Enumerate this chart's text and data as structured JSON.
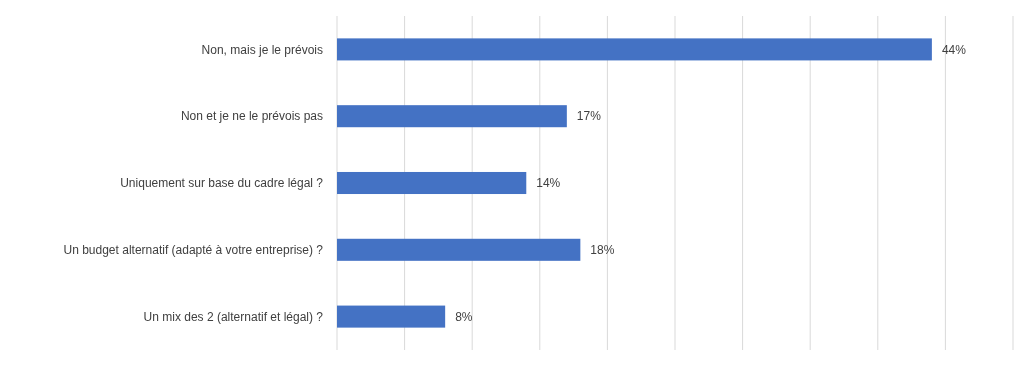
{
  "chart_data": {
    "type": "bar",
    "orientation": "horizontal",
    "categories": [
      "Non, mais je le prévois",
      "Non et je ne le prévois pas",
      "Uniquement sur base du cadre légal ?",
      "Un budget alternatif (adapté à votre entreprise) ?",
      "Un mix des 2 (alternatif et légal) ?"
    ],
    "values": [
      44,
      17,
      14,
      18,
      8
    ],
    "value_labels": [
      "44%",
      "17%",
      "14%",
      "18%",
      "8%"
    ],
    "color": "#4472c4",
    "xlim": [
      0,
      50
    ],
    "xticks": [
      {
        "value": 0,
        "label": null
      },
      {
        "value": 5,
        "label": null
      },
      {
        "value": 10,
        "label": null
      },
      {
        "value": 15,
        "label": null
      },
      {
        "value": 20,
        "label": null
      },
      {
        "value": 25,
        "label": null
      },
      {
        "value": 30,
        "label": null
      },
      {
        "value": 35,
        "label": null
      },
      {
        "value": 40,
        "label": null
      },
      {
        "value": 45,
        "label": null
      },
      {
        "value": 50,
        "label": null
      }
    ],
    "grid": "x",
    "tick_labels": false
  }
}
